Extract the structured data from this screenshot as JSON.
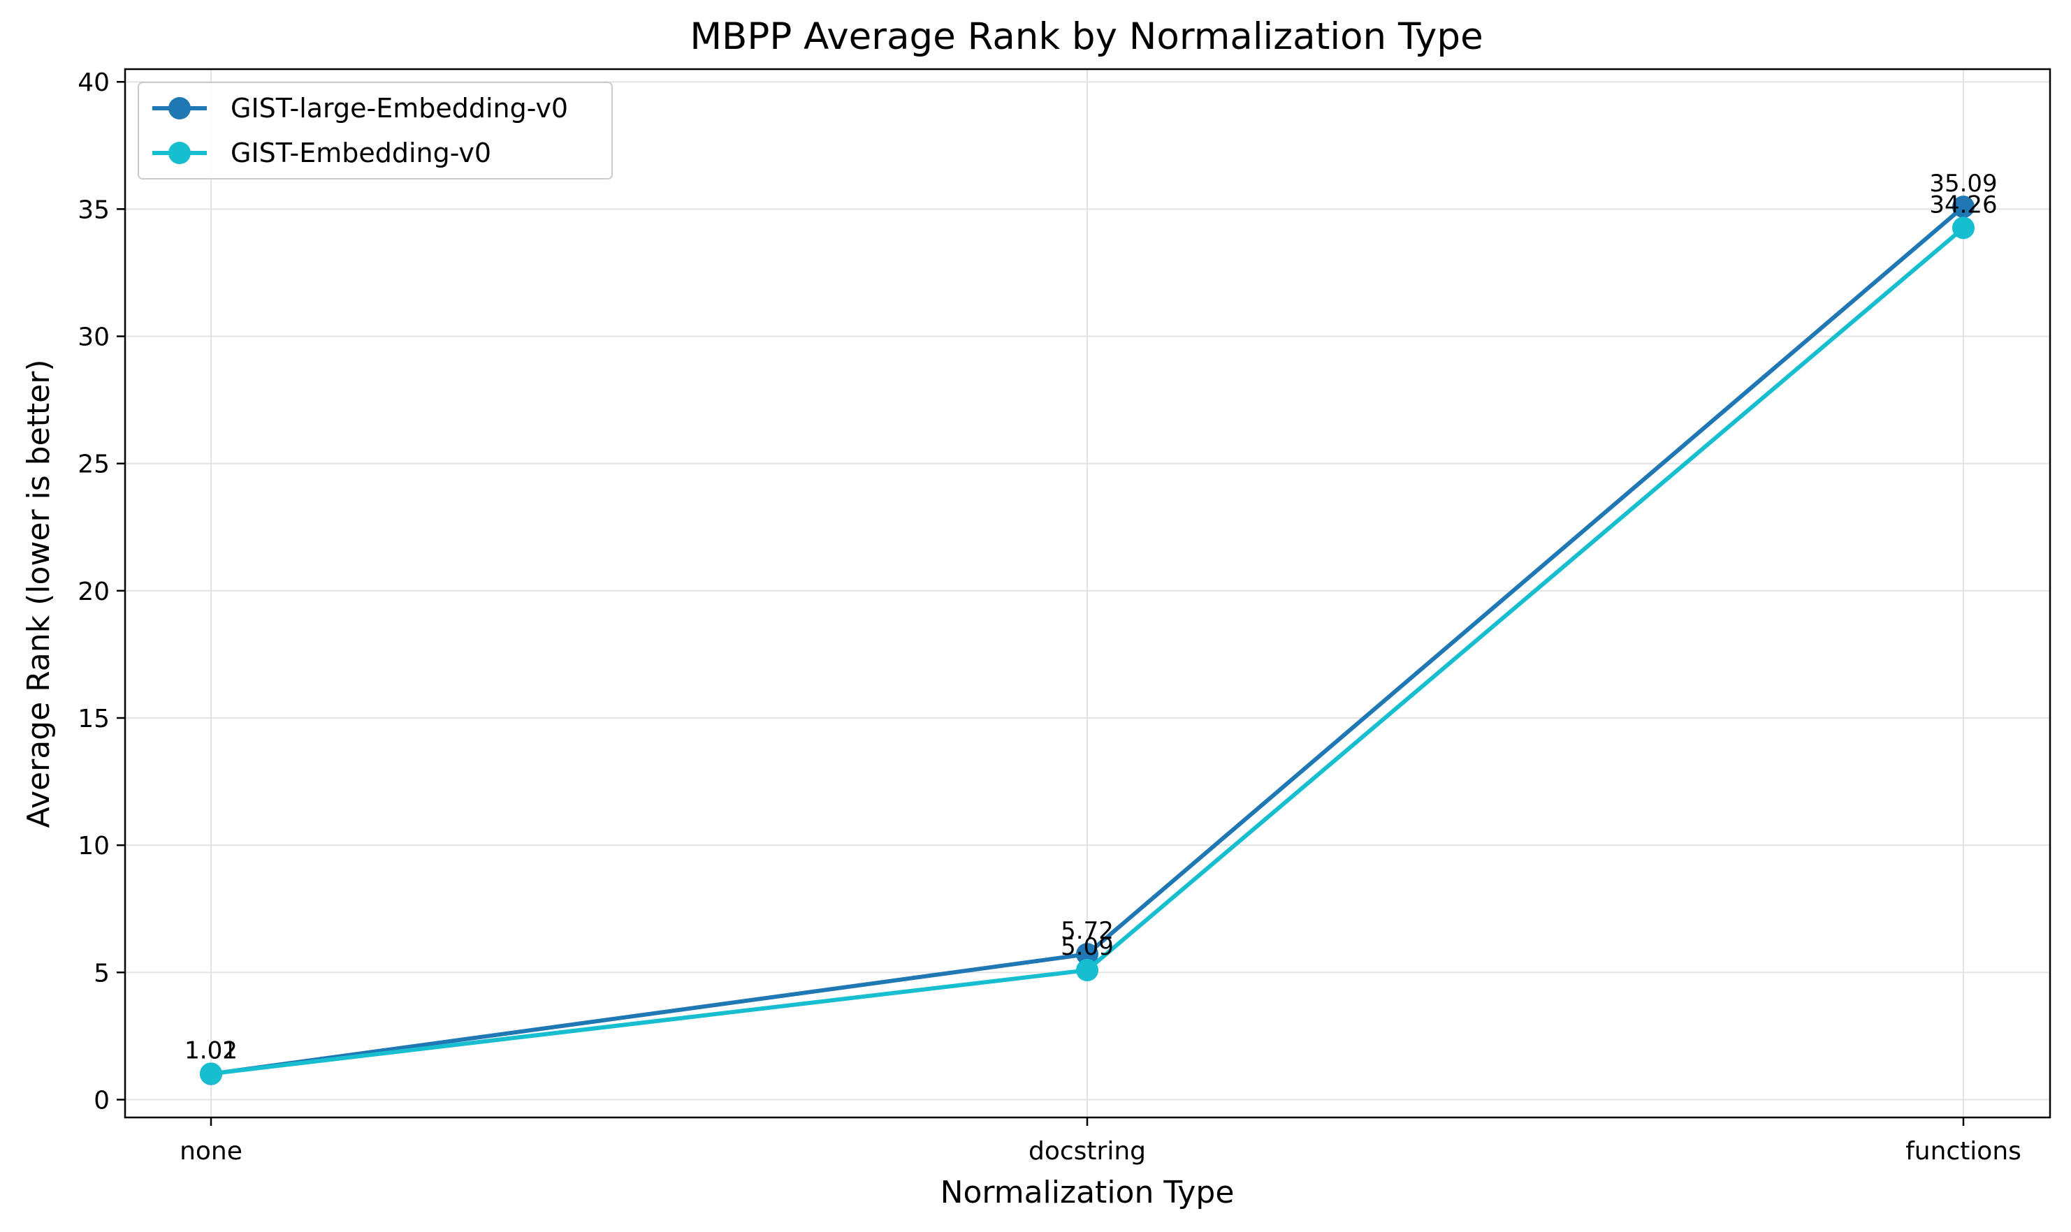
{
  "chart_data": {
    "type": "line",
    "title": "MBPP Average Rank by Normalization Type",
    "xlabel": "Normalization Type",
    "ylabel": "Average Rank (lower is better)",
    "categories": [
      "none",
      "docstring",
      "functions"
    ],
    "ylim": [
      -0.7,
      40.5
    ],
    "yticks": [
      0,
      5,
      10,
      15,
      20,
      25,
      30,
      35,
      40
    ],
    "grid": true,
    "legend_position": "top-left",
    "series": [
      {
        "name": "GIST-large-Embedding-v0",
        "color": "#1f77b4",
        "values": [
          1.01,
          5.72,
          35.09
        ],
        "labels": [
          "1.01",
          "5.72",
          "35.09"
        ]
      },
      {
        "name": "GIST-Embedding-v0",
        "color": "#17becf",
        "values": [
          1.02,
          5.09,
          34.26
        ],
        "labels": [
          "1.02",
          "5.09",
          "34.26"
        ]
      }
    ]
  }
}
